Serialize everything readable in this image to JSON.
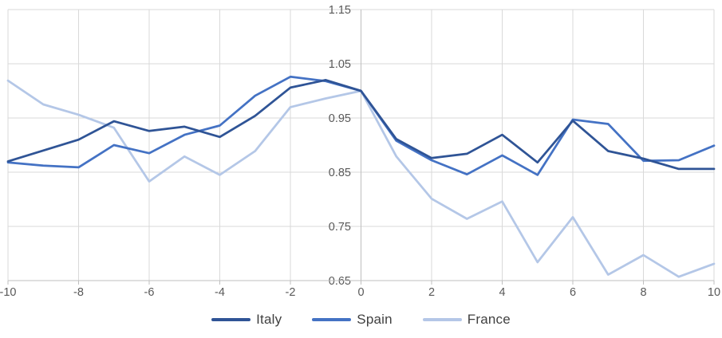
{
  "chart_data": {
    "type": "line",
    "title": "",
    "xlabel": "",
    "ylabel": "",
    "x": [
      -10,
      -9,
      -8,
      -7,
      -6,
      -5,
      -4,
      -3,
      -2,
      -1,
      0,
      1,
      2,
      3,
      4,
      5,
      6,
      7,
      8,
      9,
      10
    ],
    "series": [
      {
        "name": "Italy",
        "color": "#2F5496",
        "values": [
          0.87,
          0.89,
          0.91,
          0.944,
          0.926,
          0.934,
          0.915,
          0.954,
          1.006,
          1.02,
          1.0,
          0.911,
          0.876,
          0.884,
          0.919,
          0.868,
          0.945,
          0.889,
          0.875,
          0.856,
          0.856
        ]
      },
      {
        "name": "Spain",
        "color": "#4472C4",
        "values": [
          0.868,
          0.862,
          0.859,
          0.9,
          0.885,
          0.919,
          0.936,
          0.991,
          1.026,
          1.018,
          1.0,
          0.908,
          0.872,
          0.846,
          0.881,
          0.845,
          0.947,
          0.939,
          0.871,
          0.872,
          0.899
        ]
      },
      {
        "name": "France",
        "color": "#B4C7E7",
        "values": [
          1.019,
          0.975,
          0.956,
          0.932,
          0.833,
          0.879,
          0.845,
          0.889,
          0.97,
          0.986,
          1.0,
          0.879,
          0.801,
          0.764,
          0.796,
          0.684,
          0.767,
          0.661,
          0.697,
          0.657,
          0.681
        ]
      }
    ],
    "xlim": [
      -10,
      10
    ],
    "ylim": [
      0.65,
      1.15
    ],
    "x_ticks": [
      -10,
      -8,
      -6,
      -4,
      -2,
      0,
      2,
      4,
      6,
      8,
      10
    ],
    "y_ticks": [
      1.15,
      1.05,
      0.95,
      0.85,
      0.75,
      0.65
    ],
    "x_tick_labels": [
      "-10",
      "-8",
      "-6",
      "-4",
      "-2",
      "0",
      "2",
      "4",
      "6",
      "8",
      "10"
    ],
    "y_tick_labels": [
      "1.15",
      "1.05",
      "0.95",
      "0.85",
      "0.75",
      "0.65"
    ],
    "grid": true,
    "legend_position": "bottom",
    "colors": {
      "background": "#FFFFFF",
      "gridline": "#D9D9D9",
      "axis_line": "#BFBFBF",
      "tick_label": "#595959",
      "legend_text": "#404040"
    }
  },
  "legend": {
    "items": [
      {
        "label": "Italy"
      },
      {
        "label": "Spain"
      },
      {
        "label": "France"
      }
    ]
  }
}
